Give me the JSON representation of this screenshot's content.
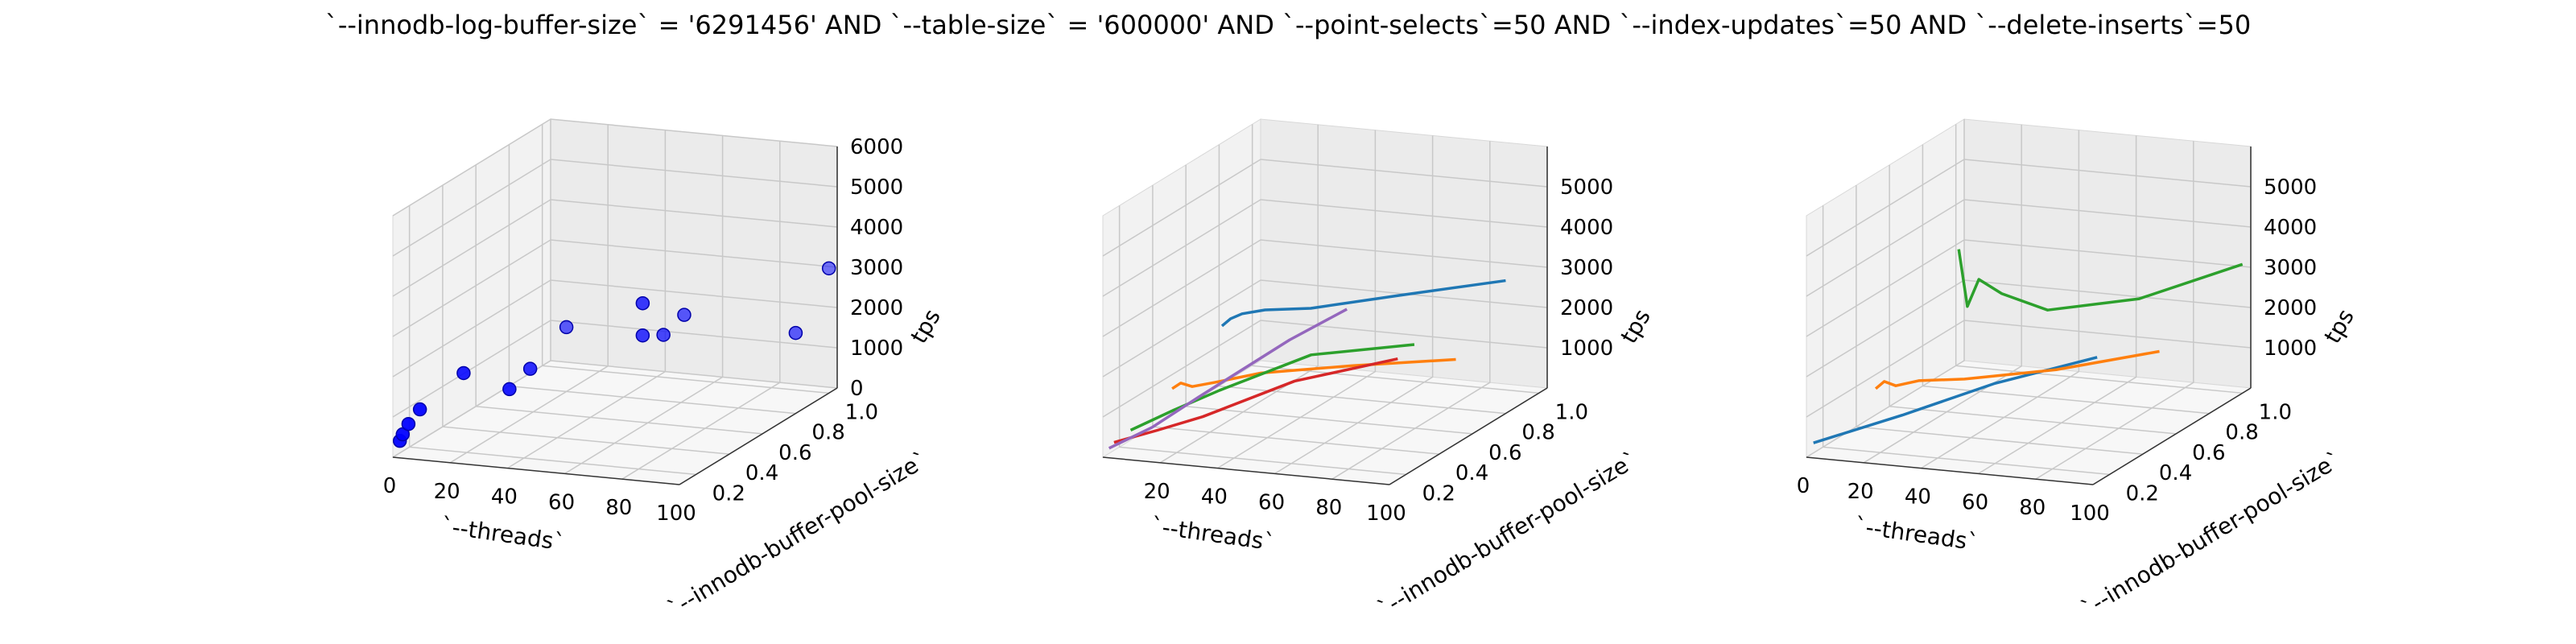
{
  "figure": {
    "title": "`--innodb-log-buffer-size` = '6291456' AND `--table-size` = '600000'  AND `--point-selects`=50 AND `--index-updates`=50 AND `--delete-inserts`=50"
  },
  "chart_data": [
    {
      "type": "scatter3d",
      "xlabel": "`--threads`",
      "ylabel": "`--innodb-buffer-pool-size`",
      "zlabel": "tps",
      "xlim": [
        0,
        100
      ],
      "ylim": [
        0.1,
        1.05
      ],
      "zlim": [
        0,
        6000
      ],
      "xticks": [
        "0",
        "20",
        "40",
        "60",
        "80",
        "100"
      ],
      "yticks": [
        "0.2",
        "0.4",
        "0.6",
        "0.8",
        "1.0"
      ],
      "zticks": [
        "0",
        "1000",
        "2000",
        "3000",
        "4000",
        "5000",
        "6000"
      ],
      "grid": true,
      "series": [
        {
          "color": "#0000ff",
          "points": [
            {
              "x": 1,
              "y": 0.125,
              "z": 350
            },
            {
              "x": 2,
              "y": 0.125,
              "z": 520
            },
            {
              "x": 4,
              "y": 0.125,
              "z": 790
            },
            {
              "x": 8,
              "y": 0.125,
              "z": 1180
            },
            {
              "x": 16,
              "y": 0.25,
              "z": 1820
            },
            {
              "x": 32,
              "y": 0.25,
              "z": 1530
            },
            {
              "x": 32,
              "y": 0.375,
              "z": 1720
            },
            {
              "x": 64,
              "y": 0.5,
              "z": 3250
            },
            {
              "x": 64,
              "y": 0.5,
              "z": 2450
            },
            {
              "x": 64,
              "y": 0.625,
              "z": 2150
            },
            {
              "x": 64,
              "y": 0.75,
              "z": 2330
            },
            {
              "x": 100,
              "y": 1.0,
              "z": 3100
            },
            {
              "x": 100,
              "y": 0.8,
              "z": 2000
            },
            {
              "x": 20,
              "y": 0.8,
              "z": 1600
            }
          ]
        }
      ]
    },
    {
      "type": "line3d",
      "xlabel": "`--threads`",
      "ylabel": "`--innodb-buffer-pool-size`",
      "zlabel": "tps",
      "xlim": [
        0,
        100
      ],
      "ylim": [
        0.1,
        1.05
      ],
      "zlim": [
        0,
        6000
      ],
      "xticks": [
        "20",
        "40",
        "60",
        "80",
        "100"
      ],
      "yticks": [
        "0.2",
        "0.4",
        "0.6",
        "0.8",
        "1.0"
      ],
      "zticks": [
        "1000",
        "2000",
        "3000",
        "4000",
        "5000"
      ],
      "grid": true,
      "series": [
        {
          "color": "#1f77b4",
          "points": [
            {
              "x": 1,
              "y": 0.8,
              "z": 1500
            },
            {
              "x": 4,
              "y": 0.8,
              "z": 1700
            },
            {
              "x": 8,
              "y": 0.8,
              "z": 1850
            },
            {
              "x": 16,
              "y": 0.8,
              "z": 2000
            },
            {
              "x": 32,
              "y": 0.8,
              "z": 2150
            },
            {
              "x": 64,
              "y": 0.8,
              "z": 2700
            },
            {
              "x": 100,
              "y": 0.8,
              "z": 3300
            }
          ]
        },
        {
          "color": "#ff7f0e",
          "points": [
            {
              "x": 1,
              "y": 0.5,
              "z": 700
            },
            {
              "x": 4,
              "y": 0.5,
              "z": 860
            },
            {
              "x": 8,
              "y": 0.5,
              "z": 800
            },
            {
              "x": 16,
              "y": 0.5,
              "z": 960
            },
            {
              "x": 32,
              "y": 0.5,
              "z": 1300
            },
            {
              "x": 64,
              "y": 0.5,
              "z": 1700
            },
            {
              "x": 100,
              "y": 0.5,
              "z": 2100
            }
          ]
        },
        {
          "color": "#2ca02c",
          "points": [
            {
              "x": 1,
              "y": 0.25,
              "z": 300
            },
            {
              "x": 16,
              "y": 0.25,
              "z": 900
            },
            {
              "x": 32,
              "y": 0.25,
              "z": 1500
            },
            {
              "x": 64,
              "y": 0.25,
              "z": 2600
            },
            {
              "x": 100,
              "y": 0.25,
              "z": 3100
            }
          ]
        },
        {
          "color": "#d62728",
          "points": [
            {
              "x": 1,
              "y": 0.15,
              "z": 250
            },
            {
              "x": 16,
              "y": 0.15,
              "z": 650
            },
            {
              "x": 32,
              "y": 0.15,
              "z": 1100
            },
            {
              "x": 64,
              "y": 0.15,
              "z": 2200
            },
            {
              "x": 100,
              "y": 0.15,
              "z": 3000
            }
          ]
        },
        {
          "color": "#9467bd",
          "points": [
            {
              "x": 1,
              "y": 0.12,
              "z": 180
            },
            {
              "x": 16,
              "y": 0.12,
              "z": 800
            },
            {
              "x": 32,
              "y": 0.12,
              "z": 1650
            },
            {
              "x": 64,
              "y": 0.12,
              "z": 3300
            },
            {
              "x": 84,
              "y": 0.12,
              "z": 4200
            }
          ]
        }
      ]
    },
    {
      "type": "line3d",
      "xlabel": "`--threads`",
      "ylabel": "`--innodb-buffer-pool-size`",
      "zlabel": "tps",
      "xlim": [
        0,
        100
      ],
      "ylim": [
        0.1,
        1.05
      ],
      "zlim": [
        0,
        6000
      ],
      "xticks": [
        "0",
        "20",
        "40",
        "60",
        "80",
        "100"
      ],
      "yticks": [
        "0.2",
        "0.4",
        "0.6",
        "0.8",
        "1.0"
      ],
      "zticks": [
        "1000",
        "2000",
        "3000",
        "4000",
        "5000"
      ],
      "grid": true,
      "series": [
        {
          "color": "#1f77b4",
          "points": [
            {
              "x": 1,
              "y": 0.125,
              "z": 300
            },
            {
              "x": 32,
              "y": 0.125,
              "z": 1200
            },
            {
              "x": 64,
              "y": 0.125,
              "z": 2200
            },
            {
              "x": 100,
              "y": 0.125,
              "z": 3100
            }
          ]
        },
        {
          "color": "#ff7f0e",
          "points": [
            {
              "x": 1,
              "y": 0.5,
              "z": 700
            },
            {
              "x": 4,
              "y": 0.5,
              "z": 900
            },
            {
              "x": 8,
              "y": 0.5,
              "z": 820
            },
            {
              "x": 16,
              "y": 0.5,
              "z": 1000
            },
            {
              "x": 32,
              "y": 0.5,
              "z": 1150
            },
            {
              "x": 64,
              "y": 0.5,
              "z": 1600
            },
            {
              "x": 100,
              "y": 0.5,
              "z": 2300
            }
          ]
        },
        {
          "color": "#2ca02c",
          "points": [
            {
              "x": 1,
              "y": 1.0,
              "z": 2900
            },
            {
              "x": 4,
              "y": 1.0,
              "z": 1500
            },
            {
              "x": 8,
              "y": 1.0,
              "z": 2200
            },
            {
              "x": 16,
              "y": 1.0,
              "z": 1900
            },
            {
              "x": 32,
              "y": 1.0,
              "z": 1600
            },
            {
              "x": 64,
              "y": 1.0,
              "z": 2100
            },
            {
              "x": 100,
              "y": 1.0,
              "z": 3200
            }
          ]
        }
      ]
    }
  ]
}
